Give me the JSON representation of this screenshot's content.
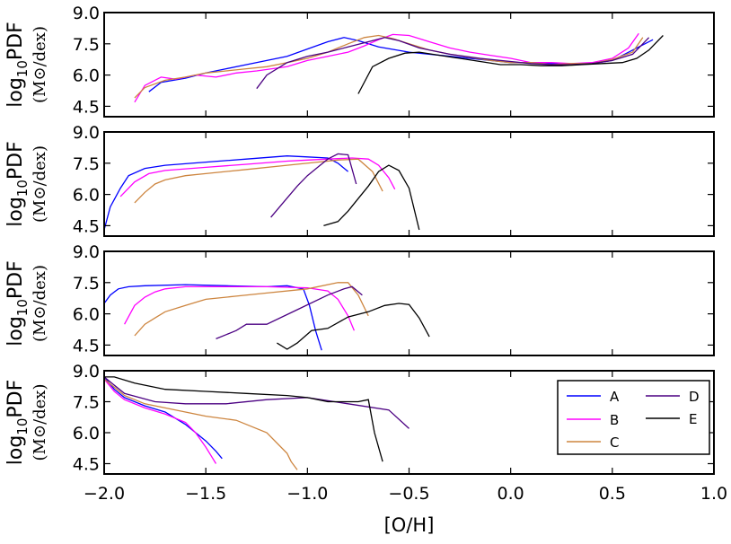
{
  "chart_data": {
    "type": "line",
    "xlabel": "[O/H]",
    "ylabel_main": "log",
    "ylabel_sub": "10",
    "ylabel_tail": "PDF",
    "ylabel_units": "(M⊙/dex)",
    "xlim": [
      -2.0,
      1.0
    ],
    "ylim": [
      4.0,
      9.0
    ],
    "xticks": [
      "−2.0",
      "−1.5",
      "−1.0",
      "−0.5",
      "0.0",
      "0.5",
      "1.0"
    ],
    "xtick_values": [
      -2.0,
      -1.5,
      -1.0,
      -0.5,
      0.0,
      0.5,
      1.0
    ],
    "yticks": [
      "4.5",
      "6.0",
      "7.5",
      "9.0"
    ],
    "ytick_values": [
      4.5,
      6.0,
      7.5,
      9.0
    ],
    "legend": {
      "location": "lower-right of bottom panel",
      "entries": [
        {
          "key": "A",
          "label": "A",
          "color": "#0000ff"
        },
        {
          "key": "B",
          "label": "B",
          "color": "#ff00ff"
        },
        {
          "key": "C",
          "label": "C",
          "color": "#cd853f"
        },
        {
          "key": "D",
          "label": "D",
          "color": "#4b0082"
        },
        {
          "key": "E",
          "label": "E",
          "color": "#000000"
        }
      ]
    },
    "panels": [
      {
        "name": "panel-1",
        "series": [
          {
            "key": "A",
            "x": [
              -1.78,
              -1.72,
              -1.6,
              -1.5,
              -1.4,
              -1.3,
              -1.2,
              -1.1,
              -1.0,
              -0.9,
              -0.82,
              -0.75,
              -0.65,
              -0.5,
              -0.3,
              -0.1,
              0.0,
              0.1,
              0.2,
              0.3,
              0.4,
              0.5,
              0.6,
              0.7
            ],
            "y": [
              5.2,
              5.65,
              5.85,
              6.1,
              6.3,
              6.5,
              6.7,
              6.9,
              7.25,
              7.6,
              7.8,
              7.65,
              7.35,
              7.1,
              6.9,
              6.7,
              6.6,
              6.6,
              6.55,
              6.5,
              6.55,
              6.7,
              7.2,
              7.7
            ]
          },
          {
            "key": "B",
            "x": [
              -1.85,
              -1.8,
              -1.72,
              -1.65,
              -1.55,
              -1.45,
              -1.35,
              -1.25,
              -1.1,
              -1.0,
              -0.9,
              -0.8,
              -0.72,
              -0.65,
              -0.58,
              -0.5,
              -0.4,
              -0.3,
              -0.2,
              -0.1,
              0.0,
              0.1,
              0.2,
              0.3,
              0.4,
              0.5,
              0.58,
              0.63
            ],
            "y": [
              4.7,
              5.5,
              5.9,
              5.8,
              6.0,
              5.9,
              6.1,
              6.2,
              6.4,
              6.7,
              6.9,
              7.1,
              7.4,
              7.7,
              7.95,
              7.9,
              7.6,
              7.3,
              7.1,
              6.95,
              6.8,
              6.6,
              6.6,
              6.55,
              6.6,
              6.8,
              7.3,
              8.0
            ]
          },
          {
            "key": "C",
            "x": [
              -1.85,
              -1.8,
              -1.7,
              -1.6,
              -1.5,
              -1.4,
              -1.3,
              -1.2,
              -1.1,
              -1.0,
              -0.9,
              -0.8,
              -0.72,
              -0.65,
              -0.58,
              -0.5,
              -0.4,
              -0.3,
              -0.2,
              -0.1,
              0.0,
              0.1,
              0.2,
              0.3,
              0.4,
              0.5,
              0.6,
              0.65
            ],
            "y": [
              4.9,
              5.4,
              5.75,
              5.9,
              6.1,
              6.2,
              6.3,
              6.4,
              6.6,
              6.8,
              7.1,
              7.5,
              7.8,
              7.9,
              7.75,
              7.5,
              7.2,
              7.0,
              6.85,
              6.7,
              6.6,
              6.6,
              6.5,
              6.55,
              6.55,
              6.75,
              7.1,
              7.8
            ]
          },
          {
            "key": "D",
            "x": [
              -1.25,
              -1.2,
              -1.1,
              -1.0,
              -0.9,
              -0.8,
              -0.7,
              -0.62,
              -0.55,
              -0.45,
              -0.3,
              -0.15,
              0.0,
              0.1,
              0.2,
              0.3,
              0.4,
              0.5,
              0.6,
              0.68
            ],
            "y": [
              5.35,
              6.0,
              6.6,
              6.9,
              7.1,
              7.35,
              7.6,
              7.8,
              7.65,
              7.3,
              7.0,
              6.8,
              6.65,
              6.55,
              6.5,
              6.5,
              6.55,
              6.7,
              7.0,
              7.8
            ]
          },
          {
            "key": "E",
            "x": [
              -0.75,
              -0.68,
              -0.6,
              -0.52,
              -0.45,
              -0.35,
              -0.25,
              -0.15,
              -0.05,
              0.05,
              0.15,
              0.25,
              0.35,
              0.45,
              0.55,
              0.62,
              0.68,
              0.75
            ],
            "y": [
              5.1,
              6.4,
              6.8,
              7.05,
              7.1,
              6.95,
              6.8,
              6.65,
              6.5,
              6.5,
              6.45,
              6.45,
              6.5,
              6.55,
              6.6,
              6.8,
              7.2,
              7.9
            ]
          }
        ]
      },
      {
        "name": "panel-2",
        "series": [
          {
            "key": "A",
            "x": [
              -2.0,
              -1.97,
              -1.92,
              -1.88,
              -1.8,
              -1.7,
              -1.5,
              -1.3,
              -1.1,
              -1.0,
              -0.9,
              -0.85,
              -0.8
            ],
            "y": [
              4.3,
              5.4,
              6.3,
              6.9,
              7.25,
              7.4,
              7.55,
              7.7,
              7.85,
              7.8,
              7.75,
              7.5,
              7.1
            ]
          },
          {
            "key": "B",
            "x": [
              -1.92,
              -1.85,
              -1.78,
              -1.7,
              -1.5,
              -1.3,
              -1.1,
              -1.0,
              -0.9,
              -0.78,
              -0.7,
              -0.65,
              -0.6,
              -0.57
            ],
            "y": [
              5.9,
              6.6,
              7.0,
              7.15,
              7.3,
              7.45,
              7.6,
              7.65,
              7.7,
              7.75,
              7.7,
              7.4,
              6.8,
              6.25
            ]
          },
          {
            "key": "C",
            "x": [
              -1.85,
              -1.8,
              -1.75,
              -1.7,
              -1.6,
              -1.5,
              -1.3,
              -1.1,
              -0.95,
              -0.85,
              -0.75,
              -0.68,
              -0.63
            ],
            "y": [
              5.6,
              6.1,
              6.5,
              6.7,
              6.9,
              7.0,
              7.2,
              7.4,
              7.55,
              7.65,
              7.7,
              7.1,
              6.15
            ]
          },
          {
            "key": "D",
            "x": [
              -1.18,
              -1.12,
              -1.05,
              -1.0,
              -0.95,
              -0.9,
              -0.85,
              -0.8,
              -0.76
            ],
            "y": [
              4.9,
              5.6,
              6.4,
              6.9,
              7.3,
              7.7,
              7.95,
              7.9,
              6.5
            ]
          },
          {
            "key": "E",
            "x": [
              -0.92,
              -0.85,
              -0.8,
              -0.75,
              -0.7,
              -0.65,
              -0.6,
              -0.55,
              -0.5,
              -0.45
            ],
            "y": [
              4.5,
              4.7,
              5.2,
              5.8,
              6.4,
              7.1,
              7.4,
              7.15,
              6.3,
              4.3
            ]
          }
        ]
      },
      {
        "name": "panel-3",
        "series": [
          {
            "key": "A",
            "x": [
              -2.0,
              -1.97,
              -1.93,
              -1.88,
              -1.8,
              -1.6,
              -1.4,
              -1.2,
              -1.1,
              -1.02,
              -0.99,
              -0.96,
              -0.93
            ],
            "y": [
              6.5,
              6.9,
              7.2,
              7.3,
              7.35,
              7.4,
              7.35,
              7.3,
              7.35,
              7.2,
              6.4,
              5.2,
              4.25
            ]
          },
          {
            "key": "B",
            "x": [
              -1.9,
              -1.85,
              -1.8,
              -1.75,
              -1.7,
              -1.6,
              -1.4,
              -1.2,
              -1.0,
              -0.9,
              -0.85,
              -0.8,
              -0.77
            ],
            "y": [
              5.5,
              6.4,
              6.8,
              7.05,
              7.2,
              7.3,
              7.3,
              7.3,
              7.25,
              7.1,
              6.7,
              5.9,
              5.2
            ]
          },
          {
            "key": "C",
            "x": [
              -1.85,
              -1.8,
              -1.75,
              -1.7,
              -1.6,
              -1.5,
              -1.35,
              -1.2,
              -1.0,
              -0.85,
              -0.8,
              -0.75,
              -0.7
            ],
            "y": [
              4.95,
              5.5,
              5.8,
              6.1,
              6.4,
              6.7,
              6.85,
              7.0,
              7.2,
              7.5,
              7.5,
              6.9,
              5.9
            ]
          },
          {
            "key": "D",
            "x": [
              -1.45,
              -1.4,
              -1.35,
              -1.3,
              -1.2,
              -1.05,
              -0.9,
              -0.82,
              -0.78,
              -0.73
            ],
            "y": [
              4.8,
              5.0,
              5.2,
              5.5,
              5.5,
              6.2,
              6.9,
              7.2,
              7.3,
              6.9
            ]
          },
          {
            "key": "E",
            "x": [
              -1.15,
              -1.1,
              -1.05,
              -0.98,
              -0.9,
              -0.8,
              -0.7,
              -0.62,
              -0.55,
              -0.5,
              -0.45,
              -0.4
            ],
            "y": [
              4.6,
              4.3,
              4.6,
              5.2,
              5.3,
              5.85,
              6.1,
              6.4,
              6.5,
              6.45,
              5.8,
              4.9
            ]
          }
        ]
      },
      {
        "name": "panel-4",
        "series": [
          {
            "key": "A",
            "x": [
              -2.0,
              -1.95,
              -1.9,
              -1.8,
              -1.7,
              -1.6,
              -1.5,
              -1.45,
              -1.42
            ],
            "y": [
              8.7,
              8.1,
              7.7,
              7.3,
              7.0,
              6.4,
              5.6,
              5.1,
              4.75
            ]
          },
          {
            "key": "B",
            "x": [
              -2.0,
              -1.95,
              -1.9,
              -1.8,
              -1.7,
              -1.6,
              -1.55,
              -1.5,
              -1.45
            ],
            "y": [
              8.6,
              8.0,
              7.6,
              7.2,
              6.9,
              6.5,
              6.0,
              5.3,
              4.5
            ]
          },
          {
            "key": "C",
            "x": [
              -2.0,
              -1.95,
              -1.9,
              -1.8,
              -1.7,
              -1.6,
              -1.5,
              -1.35,
              -1.2,
              -1.1,
              -1.08,
              -1.05
            ],
            "y": [
              8.6,
              8.2,
              7.8,
              7.4,
              7.2,
              7.0,
              6.8,
              6.6,
              6.0,
              5.0,
              4.6,
              4.2
            ]
          },
          {
            "key": "D",
            "x": [
              -2.0,
              -1.9,
              -1.75,
              -1.6,
              -1.4,
              -1.2,
              -1.0,
              -0.8,
              -0.6,
              -0.5
            ],
            "y": [
              8.7,
              7.9,
              7.5,
              7.4,
              7.4,
              7.6,
              7.7,
              7.4,
              7.1,
              6.2
            ]
          },
          {
            "key": "E",
            "x": [
              -2.0,
              -1.95,
              -1.85,
              -1.7,
              -1.5,
              -1.3,
              -1.1,
              -1.0,
              -0.9,
              -0.75,
              -0.7,
              -0.67,
              -0.63
            ],
            "y": [
              8.7,
              8.7,
              8.4,
              8.1,
              8.0,
              7.9,
              7.8,
              7.7,
              7.5,
              7.5,
              7.6,
              6.0,
              4.6
            ]
          }
        ]
      }
    ]
  }
}
